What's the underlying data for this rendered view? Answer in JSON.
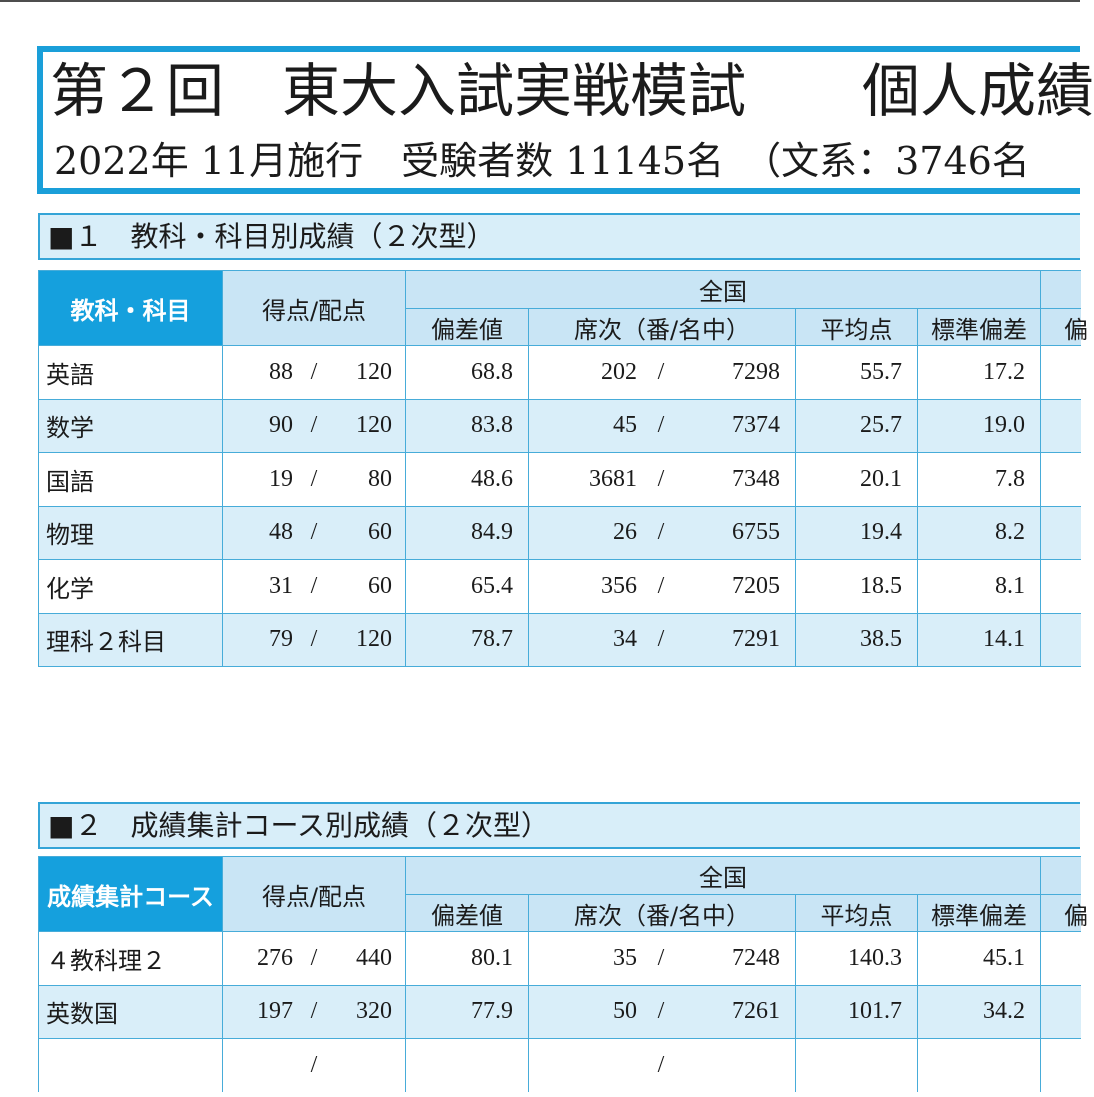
{
  "report": {
    "title": "第２回　東大入試実戦模試　　個人成績",
    "subtitle": "2022年 11月施行　受験者数 11145名　（文系：3746名"
  },
  "colors": {
    "accent": "#1a9fd9",
    "header_dark": "#15a0dd",
    "header_light": "#c9e5f5",
    "row_alt": "#d9eef9",
    "band_fill": "#d8eef9",
    "band_border": "#34a4d7",
    "cell_border": "#47acd9"
  },
  "sections": [
    {
      "heading": "■１　教科・科目別成績（２次型）",
      "separator": "/",
      "table": {
        "columns": {
          "label": "教科・科目",
          "score": "得点/配点",
          "group": "全国",
          "deviation": "偏差値",
          "rank": "席次（番/名中）",
          "average": "平均点",
          "std_dev": "標準偏差",
          "partial": "偏"
        },
        "rows": [
          {
            "name": "英語",
            "score": "88",
            "max": "120",
            "deviation": "68.8",
            "rank": "202",
            "examinees": "7298",
            "average": "55.7",
            "std_dev": "17.2"
          },
          {
            "name": "数学",
            "score": "90",
            "max": "120",
            "deviation": "83.8",
            "rank": "45",
            "examinees": "7374",
            "average": "25.7",
            "std_dev": "19.0"
          },
          {
            "name": "国語",
            "score": "19",
            "max": "80",
            "deviation": "48.6",
            "rank": "3681",
            "examinees": "7348",
            "average": "20.1",
            "std_dev": "7.8"
          },
          {
            "name": "物理",
            "score": "48",
            "max": "60",
            "deviation": "84.9",
            "rank": "26",
            "examinees": "6755",
            "average": "19.4",
            "std_dev": "8.2"
          },
          {
            "name": "化学",
            "score": "31",
            "max": "60",
            "deviation": "65.4",
            "rank": "356",
            "examinees": "7205",
            "average": "18.5",
            "std_dev": "8.1"
          },
          {
            "name": "理科２科目",
            "score": "79",
            "max": "120",
            "deviation": "78.7",
            "rank": "34",
            "examinees": "7291",
            "average": "38.5",
            "std_dev": "14.1"
          }
        ]
      }
    },
    {
      "heading": "■２　成績集計コース別成績（２次型）",
      "separator": "/",
      "table": {
        "columns": {
          "label": "成績集計コース",
          "score": "得点/配点",
          "group": "全国",
          "deviation": "偏差値",
          "rank": "席次（番/名中）",
          "average": "平均点",
          "std_dev": "標準偏差",
          "partial": "偏"
        },
        "rows": [
          {
            "name": "４教科理２",
            "score": "276",
            "max": "440",
            "deviation": "80.1",
            "rank": "35",
            "examinees": "7248",
            "average": "140.3",
            "std_dev": "45.1"
          },
          {
            "name": "英数国",
            "score": "197",
            "max": "320",
            "deviation": "77.9",
            "rank": "50",
            "examinees": "7261",
            "average": "101.7",
            "std_dev": "34.2"
          },
          {
            "name": "",
            "score": "",
            "max": "",
            "deviation": "",
            "rank": "",
            "examinees": "",
            "average": "",
            "std_dev": ""
          }
        ]
      }
    }
  ]
}
